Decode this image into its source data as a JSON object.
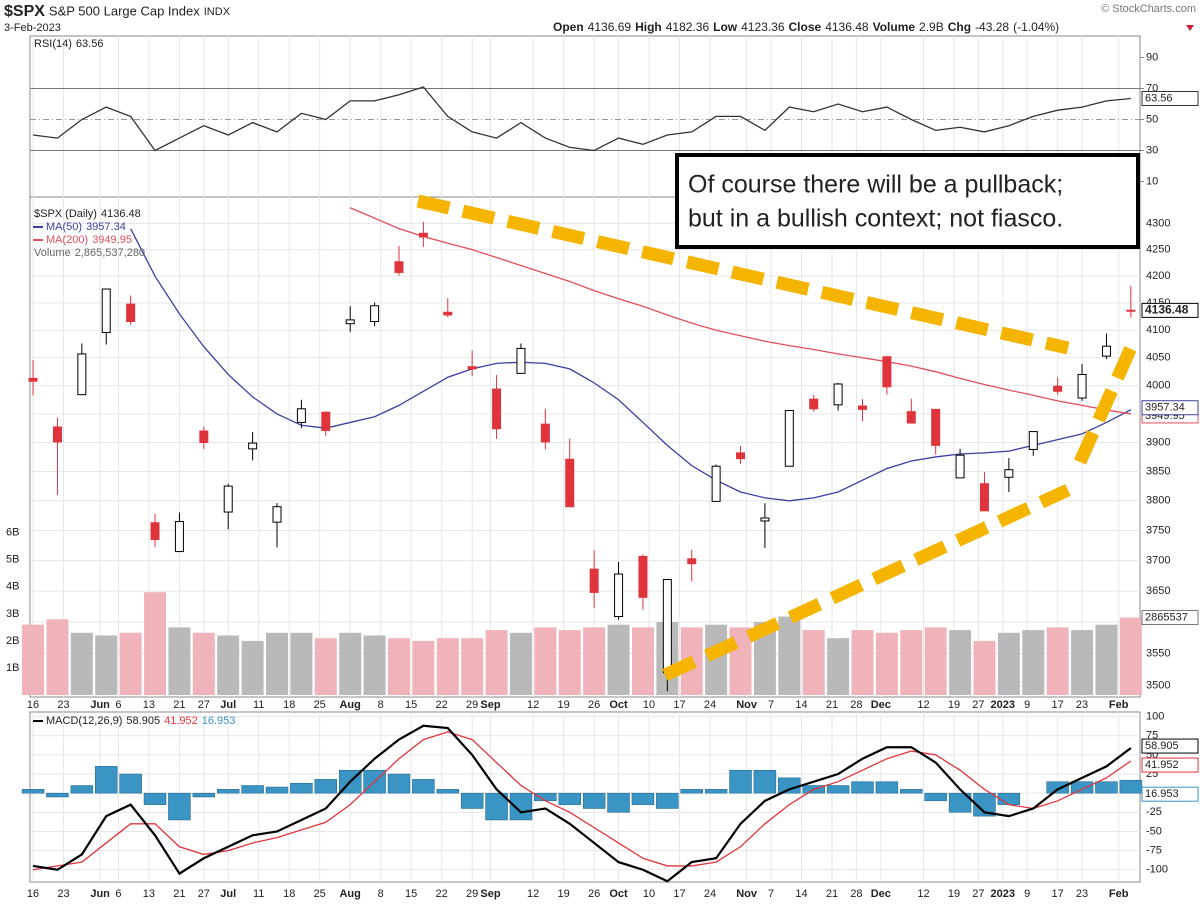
{
  "header": {
    "symbol": "$SPX",
    "name": "S&P 500 Large Cap Index",
    "exchange": "INDX",
    "date": "3-Feb-2023",
    "source": "© StockCharts.com",
    "labels": {
      "open": "Open",
      "high": "High",
      "low": "Low",
      "close": "Close",
      "volume": "Volume",
      "change": "Chg"
    },
    "change": -43.28,
    "change_pct": {
      "value": -1.04,
      "label": "(-1.04%)"
    }
  },
  "chart_data": {
    "type": "candlestick",
    "grid": true,
    "x": [
      0,
      4,
      8,
      12,
      16,
      20,
      24,
      28,
      32,
      36,
      40,
      44,
      48,
      52,
      56,
      60,
      64,
      68,
      72,
      76,
      80,
      84,
      88,
      92,
      96,
      100,
      104,
      108,
      112,
      116,
      120,
      124,
      128,
      132,
      136,
      140,
      144,
      148,
      152,
      156,
      160,
      164,
      168,
      172,
      176,
      180
    ],
    "xlim": [
      -0.5,
      181.5
    ],
    "xticks": [
      {
        "value": 0,
        "label": "16"
      },
      {
        "value": 5,
        "label": "23"
      },
      {
        "value": 11,
        "label": "Jun"
      },
      {
        "value": 14,
        "label": "6"
      },
      {
        "value": 19,
        "label": "13"
      },
      {
        "value": 24,
        "label": "21"
      },
      {
        "value": 28,
        "label": "27"
      },
      {
        "value": 32,
        "label": "Jul"
      },
      {
        "value": 37,
        "label": "11"
      },
      {
        "value": 42,
        "label": "18"
      },
      {
        "value": 47,
        "label": "25"
      },
      {
        "value": 52,
        "label": "Aug"
      },
      {
        "value": 57,
        "label": "8"
      },
      {
        "value": 62,
        "label": "15"
      },
      {
        "value": 67,
        "label": "22"
      },
      {
        "value": 72,
        "label": "29"
      },
      {
        "value": 75,
        "label": "Sep"
      },
      {
        "value": 82,
        "label": "12"
      },
      {
        "value": 87,
        "label": "19"
      },
      {
        "value": 92,
        "label": "26"
      },
      {
        "value": 96,
        "label": "Oct"
      },
      {
        "value": 101,
        "label": "10"
      },
      {
        "value": 106,
        "label": "17"
      },
      {
        "value": 111,
        "label": "24"
      },
      {
        "value": 117,
        "label": "Nov"
      },
      {
        "value": 121,
        "label": "7"
      },
      {
        "value": 126,
        "label": "14"
      },
      {
        "value": 131,
        "label": "21"
      },
      {
        "value": 135,
        "label": "28"
      },
      {
        "value": 139,
        "label": "Dec"
      },
      {
        "value": 146,
        "label": "12"
      },
      {
        "value": 151,
        "label": "19"
      },
      {
        "value": 155,
        "label": "27"
      },
      {
        "value": 159,
        "label": "2023"
      },
      {
        "value": 163,
        "label": "9"
      },
      {
        "value": 168,
        "label": "17"
      },
      {
        "value": 172,
        "label": "23"
      },
      {
        "value": 178,
        "label": "Feb"
      }
    ],
    "price": {
      "name": "$SPX (Daily)",
      "up_color": "#000000",
      "down_color": "#e0343c",
      "open": [
        4013,
        3927,
        3984,
        4096,
        4148,
        3763,
        3715,
        3920,
        3781,
        3889,
        3764,
        3935,
        3953,
        4112,
        4116,
        4227,
        4281,
        4133,
        4034,
        3994,
        4022,
        3932,
        3871,
        3686,
        3609,
        3707,
        3520,
        3703,
        3799,
        3882,
        3766,
        3859,
        3976,
        3966,
        3964,
        4052,
        3954,
        3958,
        3839,
        3829,
        3840,
        3888,
        3999,
        3978,
        4053,
        4136.69
      ],
      "high": [
        4046,
        3943,
        4076,
        4177,
        4164,
        3778,
        3780,
        3928,
        3829,
        3918,
        3796,
        3975,
        3954,
        4144,
        4151,
        4257,
        4303,
        4159,
        4063,
        4019,
        4076,
        3959,
        3907,
        3717,
        3698,
        3710,
        3670,
        3718,
        3862,
        3894,
        3796,
        3957,
        3983,
        4005,
        3976,
        4052,
        3977,
        3958,
        3889,
        3849,
        3873,
        3919,
        4015,
        4039,
        4094,
        4182.36
      ],
      "low": [
        3983,
        3810,
        3984,
        4074,
        4110,
        3722,
        3715,
        3889,
        3752,
        3869,
        3722,
        3925,
        3911,
        4097,
        4107,
        4201,
        4255,
        4124,
        4017,
        3906,
        4022,
        3888,
        3789,
        3623,
        3604,
        3620,
        3491,
        3666,
        3799,
        3863,
        3721,
        3859,
        3954,
        3956,
        3937,
        3984,
        3933,
        3879,
        3839,
        3783,
        3815,
        3877,
        3984,
        3973,
        4048,
        4123.36
      ],
      "close": [
        4008,
        3901,
        4057,
        4176,
        4116,
        3735,
        3765,
        3900,
        3825,
        3899,
        3790,
        3959,
        3921,
        4119,
        4145,
        4207,
        4274,
        4128,
        4030,
        3924,
        4067,
        3901,
        3790,
        3648,
        3678,
        3640,
        3669,
        3695,
        3859,
        3872,
        3771,
        3956,
        3959,
        4003,
        3958,
        3998,
        3934,
        3895,
        3878,
        3783,
        3853,
        3919,
        3990,
        4020,
        4071,
        4136.48
      ]
    },
    "ylim": [
      3485,
      4345
    ],
    "log_scale": true,
    "yticks": [
      3500,
      3550,
      3600,
      3650,
      3700,
      3750,
      3800,
      3850,
      3900,
      3950,
      4000,
      4050,
      4100,
      4150,
      4200,
      4250,
      4300
    ],
    "series": [
      {
        "name": "MA(50)",
        "color": "#3b3fa0",
        "values": [
          null,
          null,
          null,
          null,
          4290,
          4200,
          4130,
          4070,
          4020,
          3980,
          3950,
          3930,
          3925,
          3935,
          3945,
          3965,
          3990,
          4015,
          4030,
          4040,
          4042,
          4040,
          4030,
          4005,
          3975,
          3935,
          3895,
          3860,
          3835,
          3815,
          3805,
          3800,
          3805,
          3815,
          3835,
          3855,
          3868,
          3875,
          3880,
          3882,
          3885,
          3895,
          3905,
          3915,
          3935,
          3957.34
        ]
      },
      {
        "name": "MA(200)",
        "color": "#e0505a",
        "values": [
          null,
          null,
          null,
          null,
          null,
          null,
          null,
          null,
          null,
          null,
          null,
          null,
          null,
          4330,
          4310,
          4290,
          4275,
          4262,
          4250,
          4235,
          4220,
          4205,
          4190,
          4173,
          4158,
          4144,
          4128,
          4113,
          4100,
          4090,
          4080,
          4072,
          4065,
          4057,
          4050,
          4043,
          4035,
          4025,
          4013,
          4002,
          3992,
          3983,
          3973,
          3965,
          3957,
          3949.95
        ]
      }
    ],
    "volume": {
      "name": "Volume",
      "up_color": "#b9b9b9",
      "down_color": "#f0b3b9",
      "legend_label": "2,865,537,280",
      "tag_label": "2865537",
      "header_label": "2.9B",
      "values": [
        2600000000,
        2800000000,
        2300000000,
        2200000000,
        2300000000,
        3800000000,
        2500000000,
        2300000000,
        2200000000,
        2000000000,
        2300000000,
        2300000000,
        2100000000,
        2300000000,
        2200000000,
        2100000000,
        2000000000,
        2100000000,
        2100000000,
        2400000000,
        2300000000,
        2500000000,
        2400000000,
        2500000000,
        2600000000,
        2500000000,
        2700000000,
        2500000000,
        2600000000,
        2500000000,
        2700000000,
        2900000000,
        2400000000,
        2100000000,
        2400000000,
        2300000000,
        2400000000,
        2500000000,
        2400000000,
        2000000000,
        2300000000,
        2400000000,
        2500000000,
        2400000000,
        2600000000,
        2865537280
      ]
    },
    "y2lim": [
      0,
      18300000000
    ],
    "y2ticks": [
      {
        "value": 1000000000,
        "label": "1B"
      },
      {
        "value": 2000000000,
        "label": "2B"
      },
      {
        "value": 3000000000,
        "label": "3B"
      },
      {
        "value": 4000000000,
        "label": "4B"
      },
      {
        "value": 5000000000,
        "label": "5B"
      },
      {
        "value": 6000000000,
        "label": "6B"
      }
    ],
    "rsi": {
      "name": "RSI(14)",
      "color": "#333333",
      "ylim": [
        0,
        100
      ],
      "yticks": [
        10,
        30,
        50,
        70,
        90
      ],
      "levels": [
        30,
        50,
        70
      ],
      "values": [
        40,
        38,
        50,
        58,
        52,
        30,
        38,
        46,
        40,
        48,
        42,
        54,
        50,
        62,
        62,
        66,
        71,
        52,
        42,
        38,
        48,
        38,
        32,
        30,
        38,
        34,
        40,
        42,
        52,
        52,
        43,
        58,
        55,
        60,
        55,
        58,
        50,
        43,
        45,
        42,
        46,
        52,
        56,
        58,
        62,
        63.56
      ]
    },
    "macd": {
      "name": "MACD(12,26,9)",
      "ylim": [
        -116,
        106
      ],
      "yticks": [
        100,
        75,
        50,
        25,
        0,
        -25,
        -50,
        -75,
        -100
      ],
      "line": {
        "color": "#000000",
        "values": [
          -95,
          -100,
          -80,
          -30,
          -15,
          -55,
          -105,
          -85,
          -70,
          -55,
          -50,
          -35,
          -20,
          15,
          45,
          70,
          88,
          85,
          50,
          5,
          -25,
          -20,
          -40,
          -65,
          -90,
          -100,
          -115,
          -90,
          -85,
          -40,
          -10,
          5,
          15,
          25,
          45,
          60,
          60,
          40,
          5,
          -25,
          -30,
          -20,
          5,
          20,
          35,
          58.905
        ]
      },
      "signal": {
        "color": "#e0343c",
        "values": [
          -100,
          -95,
          -90,
          -65,
          -40,
          -40,
          -70,
          -80,
          -75,
          -65,
          -58,
          -48,
          -38,
          -15,
          15,
          45,
          70,
          80,
          70,
          40,
          10,
          -10,
          -25,
          -45,
          -65,
          -85,
          -95,
          -95,
          -90,
          -70,
          -40,
          -15,
          5,
          15,
          30,
          45,
          55,
          50,
          30,
          5,
          -15,
          -20,
          -10,
          5,
          20,
          41.952
        ]
      },
      "histogram": {
        "color": "#3a94c4",
        "values": [
          5,
          -5,
          10,
          35,
          25,
          -15,
          -35,
          -5,
          5,
          10,
          8,
          13,
          18,
          30,
          30,
          25,
          18,
          5,
          -20,
          -35,
          -35,
          -10,
          -15,
          -20,
          -25,
          -15,
          -20,
          5,
          5,
          30,
          30,
          20,
          10,
          10,
          15,
          15,
          5,
          -10,
          -25,
          -30,
          -15,
          0,
          15,
          15,
          15,
          16.953
        ]
      }
    },
    "annotation": [
      "Of course there will be a pullback;",
      "but in a bullish context; not fiasco."
    ]
  }
}
